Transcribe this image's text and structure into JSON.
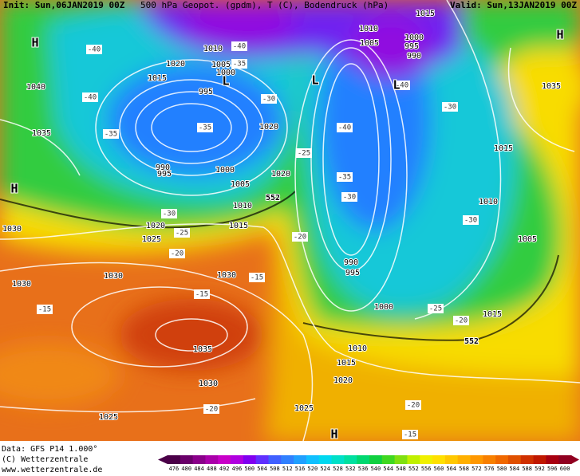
{
  "header": {
    "init": "Init: Sun,06JAN2019 00Z",
    "fields": "500 hPa Geopot. (gpdm), T (C), Bodendruck (hPa)",
    "valid": "Valid: Sun,13JAN2019 00Z"
  },
  "map": {
    "pressure_labels": [
      "1015",
      "1010",
      "1000",
      "995",
      "990",
      "1005",
      "1010",
      "1020",
      "1005",
      "1000",
      "1015",
      "1040",
      "995",
      "1035",
      "1020",
      "990",
      "995",
      "1000",
      "1020",
      "1005",
      "1010",
      "1015",
      "1020",
      "1025",
      "1030",
      "1030",
      "1030",
      "1030",
      "1035",
      "1030",
      "1025",
      "1025",
      "1020",
      "1015",
      "1010",
      "1000",
      "990",
      "995",
      "1010",
      "1005",
      "1015",
      "1035",
      "1015"
    ],
    "temperature_labels": [
      "-40",
      "-35",
      "-40",
      "-40",
      "-35",
      "-35",
      "-30",
      "-25",
      "-20",
      "-40",
      "-35",
      "-30",
      "-40",
      "-30",
      "-30",
      "-25",
      "-20",
      "-25",
      "-30",
      "-20",
      "-15",
      "-15",
      "-15",
      "-20",
      "-20",
      "-15"
    ],
    "thickness_labels": [
      "552",
      "552"
    ],
    "centers": [
      "H",
      "H",
      "H",
      "H",
      "L",
      "L",
      "L"
    ]
  },
  "footer": {
    "lines": [
      "Data: GFS P14 1.000°",
      "(C) Wetterzentrale",
      "www.wetterzentrale.de"
    ]
  },
  "scale": {
    "labels": [
      476,
      480,
      484,
      488,
      492,
      496,
      500,
      504,
      508,
      512,
      516,
      520,
      524,
      528,
      532,
      536,
      540,
      544,
      548,
      552,
      556,
      560,
      564,
      568,
      572,
      576,
      580,
      584,
      588,
      592,
      596,
      600
    ],
    "colors": [
      "#4b0048",
      "#6a006a",
      "#8a008a",
      "#aa00aa",
      "#c800c8",
      "#b000e0",
      "#8000f0",
      "#6030ff",
      "#4060ff",
      "#3080ff",
      "#20a0ff",
      "#10c0ff",
      "#00d8f0",
      "#00e0c8",
      "#00e0a0",
      "#00d870",
      "#10d040",
      "#40d820",
      "#80e010",
      "#c0f000",
      "#f0f000",
      "#ffe000",
      "#ffc800",
      "#ffb000",
      "#ff9800",
      "#f88000",
      "#f06800",
      "#e05000",
      "#d03000",
      "#c01800",
      "#a80010",
      "#900020"
    ]
  }
}
